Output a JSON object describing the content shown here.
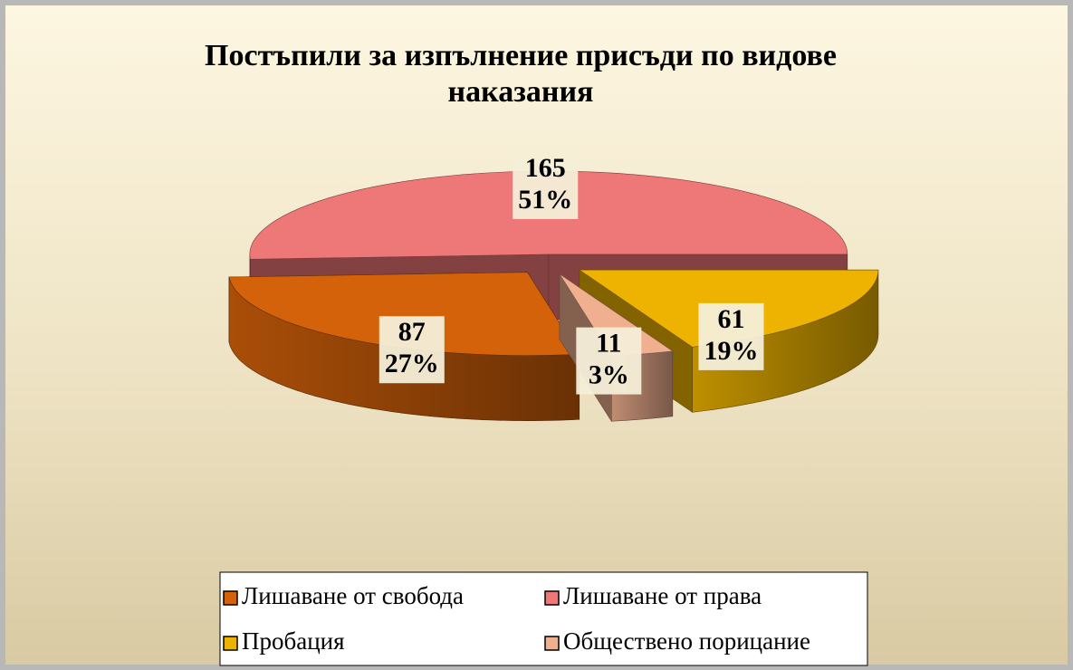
{
  "chart_data": {
    "type": "pie",
    "title": "Постъпили за изпълнение присъди по видове наказания",
    "categories": [
      "Лишаване от свобода",
      "Лишаване от права",
      "Пробация",
      "Обществено порицание"
    ],
    "values": [
      87,
      165,
      61,
      11
    ],
    "percentages": [
      27,
      51,
      19,
      3
    ],
    "percentage_labels": [
      "27%",
      "51%",
      "19%",
      "3%"
    ],
    "colors": [
      "#d4620a",
      "#ee7777",
      "#eeb300",
      "#f0b090"
    ],
    "legend": true
  }
}
